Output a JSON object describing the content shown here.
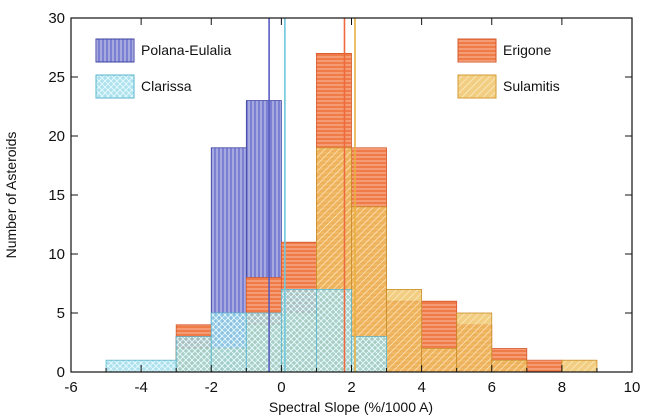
{
  "chart_data": {
    "type": "bar",
    "xlabel": "Spectral Slope (%/1000 A)",
    "ylabel": "Number of Asteroids",
    "xlim": [
      -6,
      10
    ],
    "ylim": [
      0,
      30
    ],
    "x_ticks": [
      "-6",
      "-4",
      "-2",
      "0",
      "2",
      "4",
      "6",
      "8",
      "10"
    ],
    "y_ticks": [
      "0",
      "5",
      "10",
      "15",
      "20",
      "25",
      "30"
    ],
    "legend_position": "top-left and top-right",
    "series": [
      {
        "name": "Polana-Eulalia",
        "color": "#5a5fc0",
        "hatch": "vertical",
        "bins": [
          {
            "x0": -3,
            "x1": -2,
            "value": 3
          },
          {
            "x0": -2,
            "x1": -1,
            "value": 19
          },
          {
            "x0": -1,
            "x1": 0,
            "value": 23
          },
          {
            "x0": 0,
            "x1": 1,
            "value": 10
          },
          {
            "x0": 1,
            "x1": 2,
            "value": 4
          },
          {
            "x0": 2,
            "x1": 3,
            "value": 1
          }
        ],
        "mean": -0.35
      },
      {
        "name": "Clarissa",
        "color": "#6ec8dc",
        "hatch": "cross",
        "bins": [
          {
            "x0": -5,
            "x1": -3,
            "value": 1
          },
          {
            "x0": -3,
            "x1": -2,
            "value": 3
          },
          {
            "x0": -2,
            "x1": -1,
            "value": 5
          },
          {
            "x0": -1,
            "x1": 0,
            "value": 5
          },
          {
            "x0": 0,
            "x1": 1,
            "value": 7
          },
          {
            "x0": 1,
            "x1": 2,
            "value": 7
          },
          {
            "x0": 2,
            "x1": 3,
            "value": 3
          }
        ],
        "mean": 0.1
      },
      {
        "name": "Erigone",
        "color": "#ee6a3e",
        "hatch": "horizontal",
        "bins": [
          {
            "x0": -3,
            "x1": -2,
            "value": 4
          },
          {
            "x0": -1,
            "x1": 0,
            "value": 8
          },
          {
            "x0": 0,
            "x1": 1,
            "value": 11
          },
          {
            "x0": 1,
            "x1": 2,
            "value": 27
          },
          {
            "x0": 2,
            "x1": 3,
            "value": 19
          },
          {
            "x0": 3,
            "x1": 4,
            "value": 6
          },
          {
            "x0": 4,
            "x1": 5,
            "value": 6
          },
          {
            "x0": 5,
            "x1": 6,
            "value": 4
          },
          {
            "x0": 6,
            "x1": 7,
            "value": 2
          },
          {
            "x0": 7,
            "x1": 8,
            "value": 1
          }
        ],
        "mean": 1.8
      },
      {
        "name": "Sulamitis",
        "color": "#e8b040",
        "hatch": "diagonal",
        "bins": [
          {
            "x0": -3,
            "x1": -2,
            "value": 2
          },
          {
            "x0": -2,
            "x1": -1,
            "value": 2
          },
          {
            "x0": -1,
            "x1": 0,
            "value": 4
          },
          {
            "x0": 0,
            "x1": 1,
            "value": 5
          },
          {
            "x0": 1,
            "x1": 2,
            "value": 19
          },
          {
            "x0": 2,
            "x1": 3,
            "value": 14
          },
          {
            "x0": 3,
            "x1": 4,
            "value": 7
          },
          {
            "x0": 4,
            "x1": 5,
            "value": 2
          },
          {
            "x0": 5,
            "x1": 6,
            "value": 5
          },
          {
            "x0": 6,
            "x1": 7,
            "value": 1
          },
          {
            "x0": 8,
            "x1": 9,
            "value": 1
          }
        ],
        "mean": 2.1
      }
    ]
  }
}
